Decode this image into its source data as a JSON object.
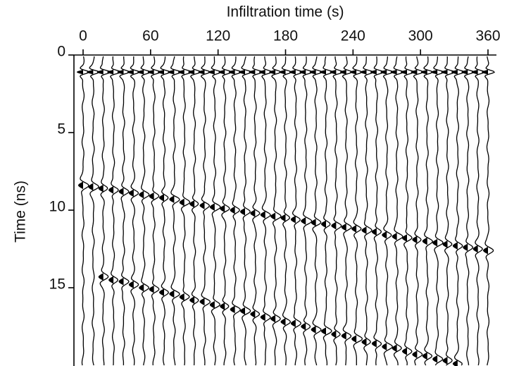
{
  "chart_data": {
    "type": "wiggle",
    "xlabel": "Infiltration time (s)",
    "ylabel": "Time (ns)",
    "xlim": [
      0,
      360
    ],
    "xticks": [
      0,
      60,
      120,
      180,
      240,
      300,
      360
    ],
    "ylim": [
      0,
      20
    ],
    "yticks": [
      0,
      5,
      10,
      15
    ],
    "x": [
      0,
      9,
      18,
      27,
      36,
      45,
      54,
      63,
      72,
      81,
      90,
      99,
      108,
      117,
      126,
      135,
      144,
      153,
      162,
      171,
      180,
      189,
      198,
      207,
      216,
      225,
      234,
      243,
      252,
      261,
      270,
      279,
      288,
      297,
      306,
      315,
      324,
      333,
      342,
      351,
      360
    ],
    "color": "#000000",
    "series": [
      {
        "values": [
          1.1,
          1.1,
          1.1,
          1.1,
          1.1,
          1.1,
          1.1,
          1.1,
          1.1,
          1.1,
          1.1,
          1.1,
          1.1,
          1.1,
          1.1,
          1.1,
          1.1,
          1.1,
          1.1,
          1.1,
          1.1,
          1.1,
          1.1,
          1.1,
          1.1,
          1.1,
          1.1,
          1.1,
          1.1,
          1.1,
          1.1,
          1.1,
          1.1,
          1.1,
          1.1,
          1.1,
          1.1,
          1.1,
          1.1,
          1.1,
          1.1
        ]
      },
      {
        "values": [
          8.4,
          8.5,
          8.6,
          8.7,
          8.8,
          8.9,
          9.0,
          9.1,
          9.2,
          9.3,
          9.5,
          9.6,
          9.7,
          9.8,
          9.9,
          10.0,
          10.1,
          10.2,
          10.3,
          10.4,
          10.5,
          10.6,
          10.7,
          10.8,
          10.9,
          11.0,
          11.1,
          11.2,
          11.3,
          11.4,
          11.6,
          11.7,
          11.8,
          11.9,
          12.0,
          12.1,
          12.2,
          12.3,
          12.4,
          12.5,
          12.6
        ]
      },
      {
        "values": [
          null,
          null,
          14.3,
          14.5,
          14.6,
          14.8,
          15.0,
          15.1,
          15.3,
          15.4,
          15.6,
          15.8,
          15.9,
          16.1,
          16.2,
          16.4,
          16.5,
          16.7,
          16.9,
          17.0,
          17.2,
          17.3,
          17.5,
          17.7,
          17.8,
          18.0,
          18.1,
          18.3,
          18.5,
          18.6,
          18.8,
          18.9,
          19.1,
          19.3,
          19.4,
          19.6,
          19.7,
          19.9,
          null,
          null,
          null
        ]
      }
    ]
  }
}
